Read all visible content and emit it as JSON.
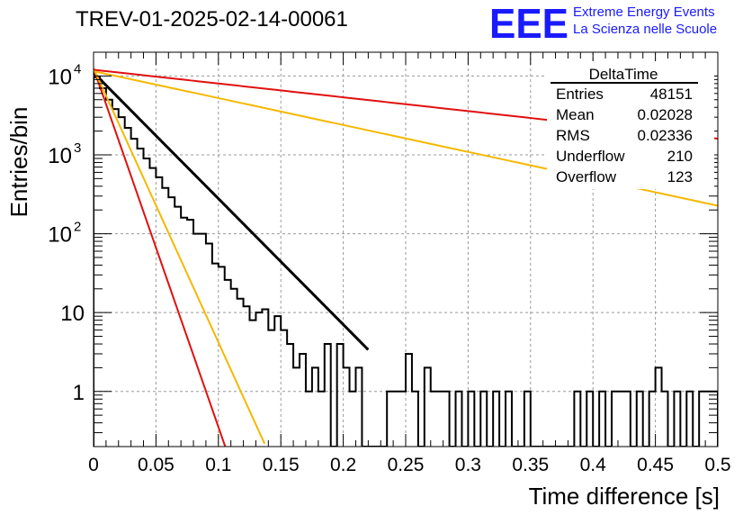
{
  "chart_data": {
    "type": "histogram",
    "title": "TREV-01-2025-02-14-00061",
    "xlabel": "Time difference [s]",
    "ylabel": "Entries/bin",
    "xlim": [
      0,
      0.5
    ],
    "ylim": [
      0.2,
      20000
    ],
    "yscale": "log",
    "grid": true,
    "x_ticks": [
      "0",
      "0.05",
      "0.1",
      "0.15",
      "0.2",
      "0.25",
      "0.3",
      "0.35",
      "0.4",
      "0.45",
      "0.5"
    ],
    "y_ticks": [
      {
        "value": 1,
        "label": "1",
        "sup": ""
      },
      {
        "value": 10,
        "label": "10",
        "sup": ""
      },
      {
        "value": 100,
        "label": "10",
        "sup": "2"
      },
      {
        "value": 1000,
        "label": "10",
        "sup": "3"
      },
      {
        "value": 10000,
        "label": "10",
        "sup": "4"
      }
    ],
    "bin_width": 0.005,
    "histogram_counts": [
      9600,
      7000,
      5000,
      3800,
      3000,
      2200,
      1600,
      1200,
      900,
      680,
      520,
      380,
      290,
      220,
      160,
      150,
      100,
      100,
      75,
      42,
      38,
      26,
      20,
      15,
      12,
      8,
      10,
      11,
      6,
      9,
      6,
      4,
      2,
      3,
      1,
      2,
      1,
      4,
      0,
      4,
      2,
      1,
      2,
      0,
      0,
      0,
      0,
      1,
      1,
      1,
      3,
      1,
      0,
      2,
      1,
      1,
      1,
      0,
      1,
      0,
      1,
      0,
      1,
      0,
      1,
      0,
      1,
      0,
      0,
      1,
      0,
      0,
      0,
      0,
      0,
      0,
      0,
      1,
      0,
      1,
      0,
      1,
      0,
      1,
      1,
      1,
      0,
      1,
      0,
      1,
      2,
      1,
      0,
      1,
      0,
      1,
      0,
      1,
      1,
      1
    ],
    "fit_curves": [
      {
        "color": "#000000",
        "amplitude": 11000,
        "tau": 0.0272,
        "x_range": [
          0.0,
          0.22
        ]
      },
      {
        "color": "#e01010",
        "amplitude": 12500,
        "tau": 0.00955,
        "x_range": [
          0.0,
          0.111
        ]
      },
      {
        "color": "#f5b800",
        "amplitude": 12500,
        "tau": 0.0125,
        "x_range": [
          0.0,
          0.137
        ]
      },
      {
        "color": "#e01010",
        "amplitude": 12000,
        "tau": 0.2483,
        "x_range": [
          0.0,
          0.5
        ]
      },
      {
        "color": "#f5b800",
        "amplitude": 11500,
        "tau": 0.1273,
        "x_range": [
          0.0,
          0.5
        ]
      }
    ]
  },
  "stats_box": {
    "title": "DeltaTime",
    "rows": [
      {
        "label": "Entries",
        "value": "48151"
      },
      {
        "label": "Mean",
        "value": "0.02028"
      },
      {
        "label": "RMS",
        "value": "0.02336"
      },
      {
        "label": "Underflow",
        "value": "210"
      },
      {
        "label": "Overflow",
        "value": "123"
      }
    ]
  },
  "logo": {
    "mark": "EEE",
    "line1": "Extreme Energy Events",
    "line2": "La Scienza nelle Scuole",
    "color": "#1a1aff"
  }
}
